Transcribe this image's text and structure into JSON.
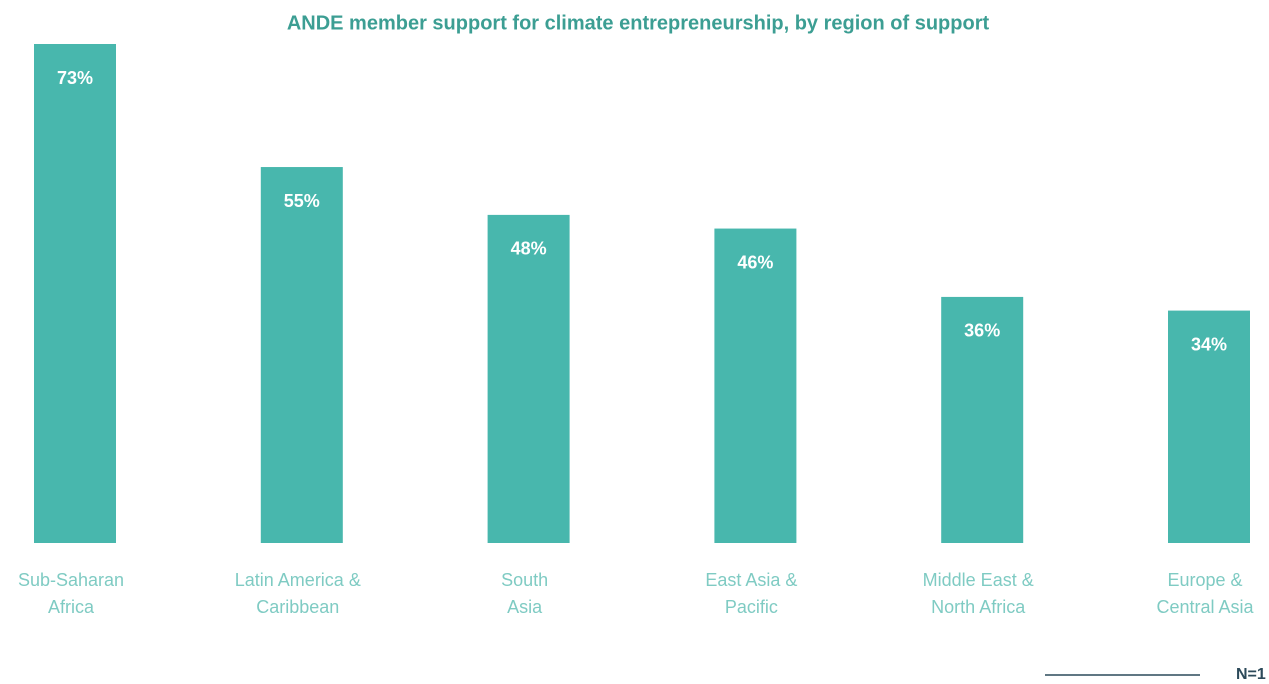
{
  "chart_data": {
    "type": "bar",
    "title": "ANDE member support for climate entrepreneurship, by region of support",
    "categories": [
      [
        "Sub-Saharan",
        "Africa"
      ],
      [
        "Latin America &",
        "Caribbean"
      ],
      [
        "South",
        "Asia"
      ],
      [
        "East Asia &",
        "Pacific"
      ],
      [
        "Middle East &",
        "North Africa"
      ],
      [
        "Europe &",
        "Central Asia"
      ]
    ],
    "values": [
      73,
      55,
      48,
      46,
      36,
      34
    ],
    "value_labels": [
      "73%",
      "55%",
      "48%",
      "46%",
      "36%",
      "34%"
    ],
    "color": "#48b7ad",
    "ylim": [
      0,
      73
    ],
    "note": "N=1"
  }
}
